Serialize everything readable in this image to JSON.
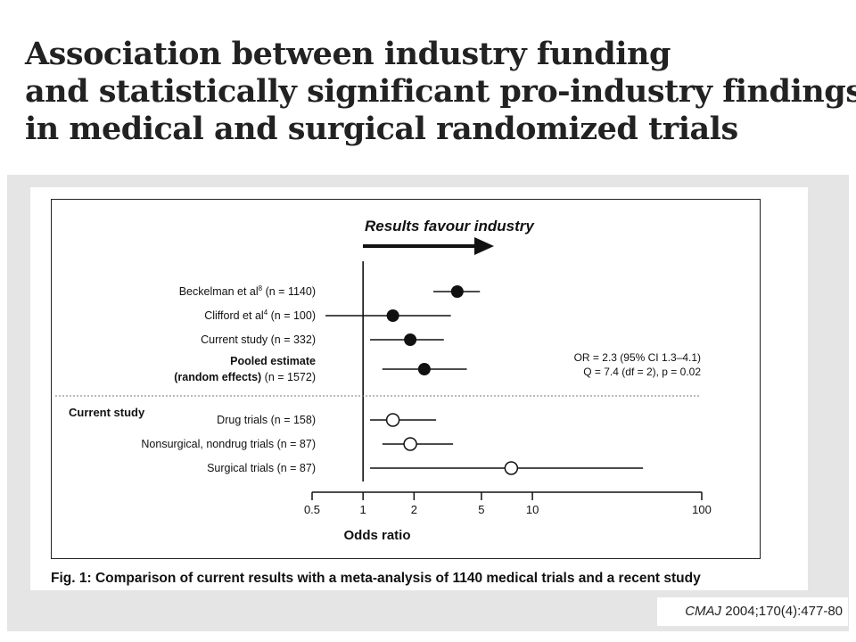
{
  "slide": {
    "title_lines": [
      "Association between industry funding",
      "and statistically significant pro-industry findings",
      "in medical and surgical randomized trials"
    ],
    "caption": "Fig. 1: Comparison of current results with a meta-analysis of 1140 medical trials and a recent study",
    "citation_journal": "CMAJ",
    "citation_rest": " 2004;170(4):477-80"
  },
  "chart_data": {
    "type": "forest",
    "header": "Results favour industry",
    "xlabel": "Odds ratio",
    "x_scale": "log",
    "x_ticks": [
      "0.5",
      "1",
      "2",
      "5",
      "10",
      "100"
    ],
    "x_tick_values": [
      0.5,
      1,
      2,
      5,
      10,
      100
    ],
    "xlim": [
      0.5,
      100
    ],
    "reference_line": 1,
    "section_label": "Current study",
    "annotation_lines": [
      "OR = 2.3 (95% CI 1.3–4.1)",
      "Q = 7.4 (df = 2), p = 0.02"
    ],
    "rows": [
      {
        "label": "Beckelman et al",
        "sup": "8",
        "n": "(n = 1140)",
        "or": 3.6,
        "ci": [
          2.6,
          4.9
        ],
        "marker": "filled"
      },
      {
        "label": "Clifford et al",
        "sup": "4",
        "n": "(n = 100)",
        "or": 1.5,
        "ci": [
          0.6,
          3.3
        ],
        "marker": "filled"
      },
      {
        "label": "Current study",
        "sup": "",
        "n": "(n = 332)",
        "or": 1.9,
        "ci": [
          1.1,
          3.0
        ],
        "marker": "filled"
      },
      {
        "label": "Pooled estimate",
        "label2": "(random effects)",
        "sup": "",
        "n": "(n = 1572)",
        "or": 2.3,
        "ci": [
          1.3,
          4.1
        ],
        "marker": "filled",
        "bold": true
      },
      {
        "label": "Drug trials",
        "sup": "",
        "n": "(n = 158)",
        "or": 1.5,
        "ci": [
          1.1,
          2.7
        ],
        "marker": "open"
      },
      {
        "label": "Nonsurgical, nondrug trials",
        "sup": "",
        "n": "(n = 87)",
        "or": 1.9,
        "ci": [
          1.3,
          3.4
        ],
        "marker": "open"
      },
      {
        "label": "Surgical trials",
        "sup": "",
        "n": "(n = 87)",
        "or": 7.5,
        "ci": [
          1.1,
          45
        ],
        "marker": "open"
      }
    ]
  }
}
